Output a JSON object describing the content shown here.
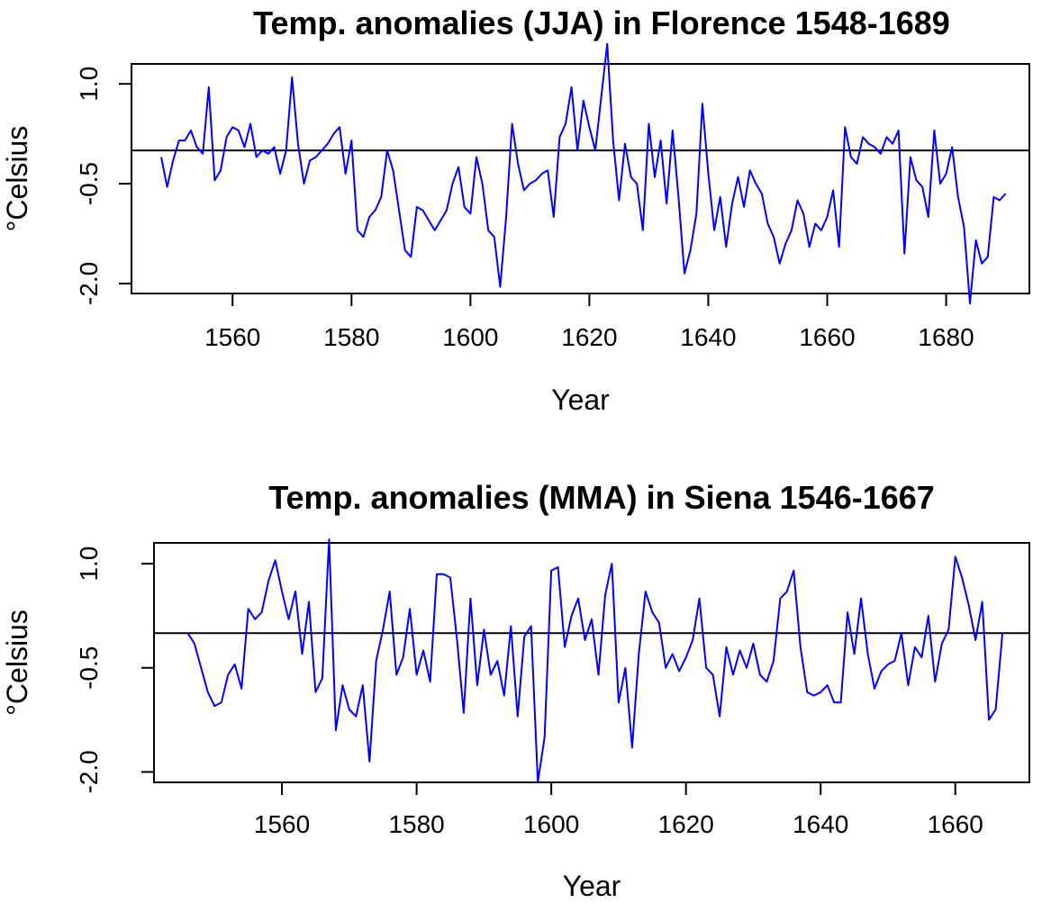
{
  "colors": {
    "series": "#0000ff",
    "axis": "#000000",
    "background": "#ffffff"
  },
  "chart_data": [
    {
      "type": "line",
      "title": "Temp. anomalies (JJA) in Florence 1548-1689",
      "xlabel": "Year",
      "ylabel": "°Celsius",
      "xlim": [
        1543,
        1694
      ],
      "ylim": [
        -2.15,
        1.3
      ],
      "x_ticks": [
        1560,
        1580,
        1600,
        1620,
        1640,
        1660,
        1680
      ],
      "y_ticks": [
        -2.0,
        -0.5,
        1.0
      ],
      "y_tick_labels": [
        "-2.0",
        "-0.5",
        "1.0"
      ],
      "reference_line": 0,
      "grid": false,
      "series": [
        {
          "x_start": 1548,
          "x_step": 1,
          "values": [
            -0.1,
            -0.55,
            -0.15,
            0.15,
            0.15,
            0.3,
            0.05,
            -0.05,
            0.95,
            -0.45,
            -0.3,
            0.2,
            0.35,
            0.3,
            0.05,
            0.4,
            -0.1,
            0.0,
            -0.05,
            0.05,
            -0.35,
            0.0,
            1.1,
            0.1,
            -0.5,
            -0.15,
            -0.1,
            0.0,
            0.1,
            0.25,
            0.35,
            -0.35,
            0.15,
            -1.2,
            -1.3,
            -1.0,
            -0.9,
            -0.7,
            0.0,
            -0.3,
            -0.9,
            -1.5,
            -1.6,
            -0.85,
            -0.9,
            -1.05,
            -1.2,
            -1.05,
            -0.9,
            -0.5,
            -0.25,
            -0.85,
            -0.95,
            -0.1,
            -0.5,
            -1.2,
            -1.3,
            -2.05,
            -1.0,
            0.4,
            -0.2,
            -0.6,
            -0.5,
            -0.45,
            -0.35,
            -0.3,
            -1.0,
            0.2,
            0.4,
            0.95,
            0.0,
            0.75,
            0.35,
            0.0,
            0.8,
            1.6,
            0.15,
            -0.75,
            0.1,
            -0.4,
            -0.5,
            -1.2,
            0.4,
            -0.4,
            0.15,
            -0.8,
            0.3,
            -0.7,
            -1.85,
            -1.5,
            -0.95,
            0.7,
            -0.35,
            -1.2,
            -0.7,
            -1.45,
            -0.8,
            -0.4,
            -0.85,
            -0.3,
            -0.5,
            -0.65,
            -1.1,
            -1.3,
            -1.7,
            -1.4,
            -1.2,
            -0.75,
            -0.95,
            -1.45,
            -1.1,
            -1.2,
            -1.0,
            -0.6,
            -1.45,
            0.35,
            -0.1,
            -0.2,
            0.2,
            0.1,
            0.05,
            -0.05,
            0.2,
            0.1,
            0.3,
            -1.55,
            -0.1,
            -0.45,
            -0.55,
            -1.0,
            0.3,
            -0.5,
            -0.35,
            0.05,
            -0.7,
            -1.15,
            -2.3,
            -1.35,
            -1.7,
            -1.6,
            -0.7,
            -0.75,
            -0.65
          ]
        }
      ]
    },
    {
      "type": "line",
      "title": "Temp. anomalies (MMA) in Siena 1546-1667",
      "xlabel": "Year",
      "ylabel": "°Celsius",
      "xlim": [
        1541,
        1671
      ],
      "ylim": [
        -2.15,
        1.3
      ],
      "x_ticks": [
        1560,
        1580,
        1600,
        1620,
        1640,
        1660
      ],
      "y_ticks": [
        -2.0,
        -0.5,
        1.0
      ],
      "y_tick_labels": [
        "-2.0",
        "-0.5",
        "1.0"
      ],
      "reference_line": 0,
      "grid": false,
      "series": [
        {
          "x_start": 1546,
          "x_step": 1,
          "values": [
            0.0,
            -0.15,
            -0.5,
            -0.85,
            -1.05,
            -1.0,
            -0.6,
            -0.45,
            -0.8,
            0.35,
            0.2,
            0.3,
            0.75,
            1.05,
            0.6,
            0.2,
            0.6,
            -0.3,
            0.45,
            -0.85,
            -0.65,
            1.35,
            -1.4,
            -0.75,
            -1.1,
            -1.2,
            -0.75,
            -1.85,
            -0.4,
            0.05,
            0.6,
            -0.6,
            -0.35,
            0.35,
            -0.6,
            -0.25,
            -0.7,
            0.85,
            0.85,
            0.8,
            -0.1,
            -1.15,
            0.5,
            -0.75,
            0.05,
            -0.6,
            -0.4,
            -0.9,
            0.1,
            -1.2,
            -0.05,
            0.1,
            -2.15,
            -1.5,
            0.9,
            0.95,
            -0.2,
            0.25,
            0.5,
            -0.1,
            0.2,
            -0.6,
            0.55,
            1.0,
            -1.0,
            -0.5,
            -1.65,
            -0.3,
            0.6,
            0.3,
            0.15,
            -0.5,
            -0.3,
            -0.55,
            -0.35,
            -0.1,
            0.5,
            -0.5,
            -0.6,
            -1.2,
            -0.2,
            -0.6,
            -0.25,
            -0.5,
            -0.15,
            -0.6,
            -0.7,
            -0.4,
            0.5,
            0.6,
            0.9,
            -0.2,
            -0.85,
            -0.9,
            -0.85,
            -0.75,
            -1.0,
            -1.0,
            0.3,
            -0.3,
            0.5,
            -0.3,
            -0.8,
            -0.55,
            -0.45,
            -0.4,
            0.0,
            -0.75,
            -0.2,
            -0.35,
            0.25,
            -0.7,
            -0.15,
            0.05,
            1.1,
            0.8,
            0.4,
            -0.1,
            0.45,
            -1.25,
            -1.1,
            0.0
          ]
        }
      ]
    }
  ]
}
